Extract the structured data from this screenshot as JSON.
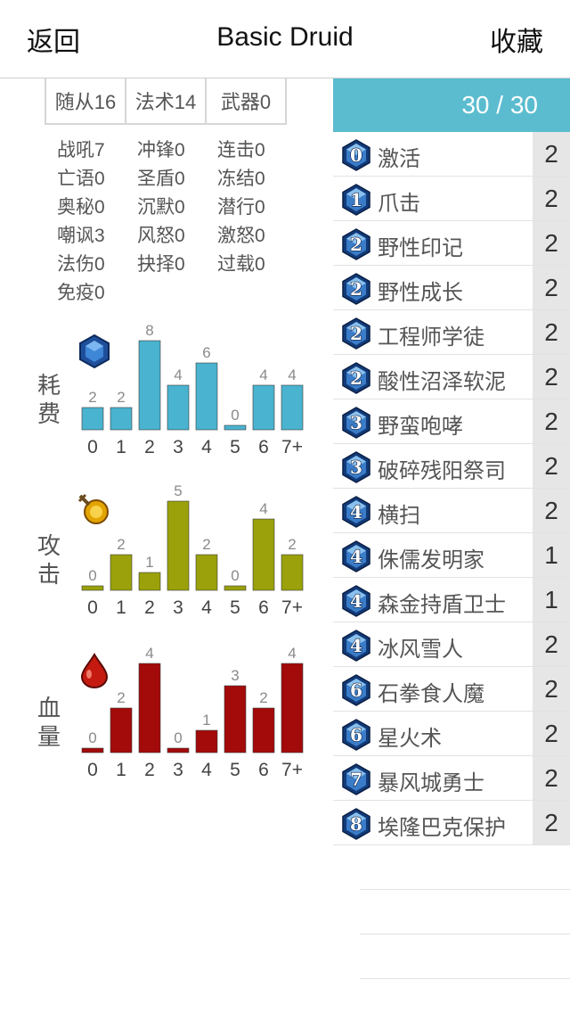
{
  "nav": {
    "back_label": "返回",
    "title": "Basic Druid",
    "favorite_label": "收藏"
  },
  "type_counts": [
    {
      "label": "随从16"
    },
    {
      "label": "法术14"
    },
    {
      "label": "武器0"
    }
  ],
  "mechanics": [
    "战吼7",
    "冲锋0",
    "连击0",
    "亡语0",
    "圣盾0",
    "冻结0",
    "奥秘0",
    "沉默0",
    "潜行0",
    "嘲讽3",
    "风怒0",
    "激怒0",
    "法伤0",
    "抉择0",
    "过载0",
    "免疫0"
  ],
  "charts": [
    {
      "id": "cost",
      "label": "耗费",
      "icon": "mana-crystal-icon",
      "color": "#4ab3cf",
      "chart_data": {
        "type": "bar",
        "categories": [
          "0",
          "1",
          "2",
          "3",
          "4",
          "5",
          "6",
          "7+"
        ],
        "values": [
          2,
          2,
          8,
          4,
          6,
          0,
          4,
          4
        ],
        "ylim": [
          0,
          8
        ]
      }
    },
    {
      "id": "attack",
      "label": "攻击",
      "icon": "attack-sword-icon",
      "color": "#9aa10a",
      "chart_data": {
        "type": "bar",
        "categories": [
          "0",
          "1",
          "2",
          "3",
          "4",
          "5",
          "6",
          "7+"
        ],
        "values": [
          0,
          2,
          1,
          5,
          2,
          0,
          4,
          2
        ],
        "ylim": [
          0,
          5
        ]
      }
    },
    {
      "id": "health",
      "label": "血量",
      "icon": "health-drop-icon",
      "color": "#a30a0a",
      "chart_data": {
        "type": "bar",
        "categories": [
          "0",
          "1",
          "2",
          "3",
          "4",
          "5",
          "6",
          "7+"
        ],
        "values": [
          0,
          2,
          4,
          0,
          1,
          3,
          2,
          4
        ],
        "ylim": [
          0,
          4
        ]
      }
    }
  ],
  "deck_count": "30 / 30",
  "cards": [
    {
      "cost": "0",
      "name": "激活",
      "qty": "2"
    },
    {
      "cost": "1",
      "name": "爪击",
      "qty": "2"
    },
    {
      "cost": "2",
      "name": "野性印记",
      "qty": "2"
    },
    {
      "cost": "2",
      "name": "野性成长",
      "qty": "2"
    },
    {
      "cost": "2",
      "name": "工程师学徒",
      "qty": "2"
    },
    {
      "cost": "2",
      "name": "酸性沼泽软泥",
      "qty": "2"
    },
    {
      "cost": "3",
      "name": "野蛮咆哮",
      "qty": "2"
    },
    {
      "cost": "3",
      "name": "破碎残阳祭司",
      "qty": "2"
    },
    {
      "cost": "4",
      "name": "横扫",
      "qty": "2"
    },
    {
      "cost": "4",
      "name": "侏儒发明家",
      "qty": "1"
    },
    {
      "cost": "4",
      "name": "森金持盾卫士",
      "qty": "1"
    },
    {
      "cost": "4",
      "name": "冰风雪人",
      "qty": "2"
    },
    {
      "cost": "6",
      "name": "石拳食人魔",
      "qty": "2"
    },
    {
      "cost": "6",
      "name": "星火术",
      "qty": "2"
    },
    {
      "cost": "7",
      "name": "暴风城勇士",
      "qty": "2"
    },
    {
      "cost": "8",
      "name": "埃隆巴克保护",
      "qty": "2"
    }
  ]
}
